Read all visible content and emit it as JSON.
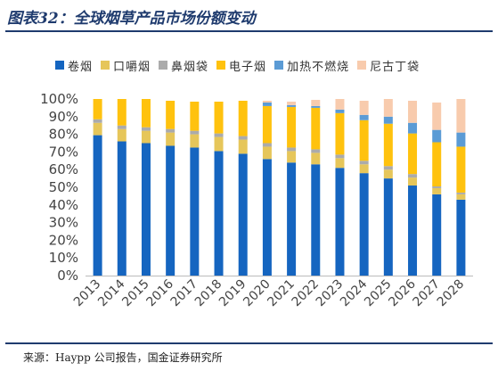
{
  "header": {
    "title": "图表32：全球烟草产品市场份额变动"
  },
  "footer": {
    "source": "来源：Haypp 公司报告，国金证券研究所"
  },
  "colors": [
    "#1565c0",
    "#e6c65a",
    "#ababab",
    "#ffc20e",
    "#5b9bd5",
    "#f8cbad"
  ],
  "chart_data": {
    "type": "bar",
    "stacked": true,
    "ylim": [
      0,
      100
    ],
    "yticks": [
      "0%",
      "10%",
      "20%",
      "30%",
      "40%",
      "50%",
      "60%",
      "70%",
      "80%",
      "90%",
      "100%"
    ],
    "grid": false,
    "legend_position": "top",
    "categories": [
      "2013",
      "2014",
      "2015",
      "2016",
      "2017",
      "2018",
      "2019",
      "2020",
      "2021",
      "2022",
      "2023",
      "2024",
      "2025",
      "2026",
      "2027",
      "2028"
    ],
    "series": [
      {
        "name": "卷烟",
        "values": [
          79.5,
          76,
          75,
          73.5,
          72.5,
          70.5,
          69,
          66,
          64,
          63,
          61,
          58,
          55,
          51,
          46,
          43
        ]
      },
      {
        "name": "口嚼烟",
        "values": [
          7,
          7,
          7,
          7.5,
          7.5,
          8,
          8,
          7,
          6.5,
          6.5,
          5.5,
          5,
          5,
          4.5,
          3.5,
          3
        ]
      },
      {
        "name": "鼻烟袋",
        "values": [
          2,
          2,
          2,
          2,
          2,
          2,
          2,
          2,
          2,
          2,
          2,
          2,
          2,
          2,
          1,
          1
        ]
      },
      {
        "name": "电子烟",
        "values": [
          11.5,
          15,
          16,
          16,
          16.5,
          18,
          20,
          21,
          23,
          23.5,
          23.5,
          23,
          24,
          23,
          25,
          26
        ]
      },
      {
        "name": "加热不燃烧",
        "values": [
          0,
          0,
          0,
          0,
          0,
          0,
          0,
          2,
          1,
          1,
          2,
          3,
          4,
          6,
          7,
          8
        ]
      },
      {
        "name": "尼古丁袋",
        "values": [
          0,
          0,
          0,
          0,
          0,
          0,
          0,
          1,
          2,
          3.5,
          6,
          8,
          10,
          12.5,
          15.5,
          19
        ]
      }
    ]
  }
}
